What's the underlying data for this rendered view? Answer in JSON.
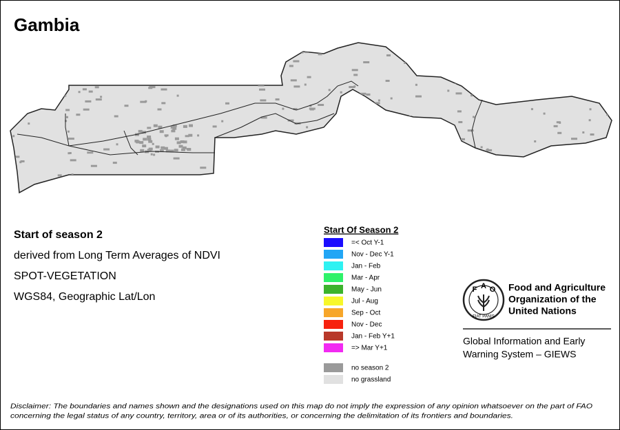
{
  "title": "Gambia",
  "description": [
    "Start of season 2",
    "derived from Long Term Averages of NDVI",
    "SPOT-VEGETATION",
    "WGS84, Geographic Lat/Lon"
  ],
  "legend": {
    "title": "Start Of Season 2",
    "items": [
      {
        "label": "=< Oct Y-1",
        "color": "#1a0dff"
      },
      {
        "label": "Nov - Dec Y-1",
        "color": "#22a6f5"
      },
      {
        "label": "Jan - Feb",
        "color": "#2ef2f2"
      },
      {
        "label": "Mar - Apr",
        "color": "#2ef26a"
      },
      {
        "label": "May - Jun",
        "color": "#3cb32c"
      },
      {
        "label": "Jul - Aug",
        "color": "#f7f72a"
      },
      {
        "label": "Sep - Oct",
        "color": "#f7a62a"
      },
      {
        "label": "Nov - Dec",
        "color": "#f7220f"
      },
      {
        "label": "Jan - Feb Y+1",
        "color": "#b8382a"
      },
      {
        "label": "=> Mar Y+1",
        "color": "#f22af2"
      }
    ],
    "extra": [
      {
        "label": "no season 2",
        "color": "#9a9a9a"
      },
      {
        "label": "no grassland",
        "color": "#e1e1e1"
      }
    ]
  },
  "logo": {
    "emblem": [
      "F",
      "A",
      "O"
    ],
    "motto": "FIAT PANIS",
    "org": [
      "Food and Agriculture",
      "Organization of the",
      "United Nations"
    ],
    "system": [
      "Global Information and Early",
      "Warning System – GIEWS"
    ]
  },
  "disclaimer": [
    "Disclaimer: The boundaries and names shown and the designations used on this map do not imply the expression of any opinion whatsoever on the part of FAO",
    "concerning the legal status of any country, territory, area or of its authorities, or concerning the delimitation of its frontiers and boundaries."
  ]
}
